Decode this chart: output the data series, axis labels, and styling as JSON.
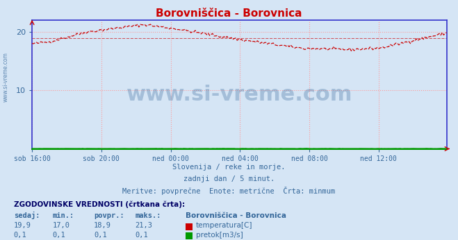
{
  "title": "Borovniščica - Borovnica",
  "title_color": "#cc0000",
  "bg_color": "#d5e5f5",
  "plot_bg_color": "#d5e5f5",
  "grid_color": "#ff9999",
  "x_tick_labels": [
    "sob 16:00",
    "sob 20:00",
    "ned 00:00",
    "ned 04:00",
    "ned 08:00",
    "ned 12:00"
  ],
  "x_tick_positions": [
    0,
    48,
    96,
    144,
    192,
    240
  ],
  "ylim": [
    0,
    22
  ],
  "yticks": [
    10,
    20
  ],
  "tick_color": "#336699",
  "axis_color_sides": "#3333cc",
  "axis_color_bottom": "#009900",
  "subtitle1": "Slovenija / reke in morje.",
  "subtitle2": "zadnji dan / 5 minut.",
  "subtitle3": "Meritve: povprečne  Enote: metrične  Črta: minmum",
  "subtitle_color": "#336699",
  "watermark": "www.si-vreme.com",
  "watermark_color": "#336699",
  "table_header": "ZGODOVINSKE VREDNOSTI (črtkana črta):",
  "col_labels": [
    "sedaj:",
    "min.:",
    "povpr.:",
    "maks.:"
  ],
  "station_label": "Borovniščica - Borovnica",
  "table_row1": [
    "19,9",
    "17,0",
    "18,9",
    "21,3"
  ],
  "table_row2": [
    "0,1",
    "0,1",
    "0,1",
    "0,1"
  ],
  "legend_label1": "temperatura[C]",
  "legend_label2": "pretok[m3/s]",
  "legend_color1": "#cc0000",
  "legend_color2": "#009900",
  "temp_avg": 18.9,
  "n_points": 288
}
